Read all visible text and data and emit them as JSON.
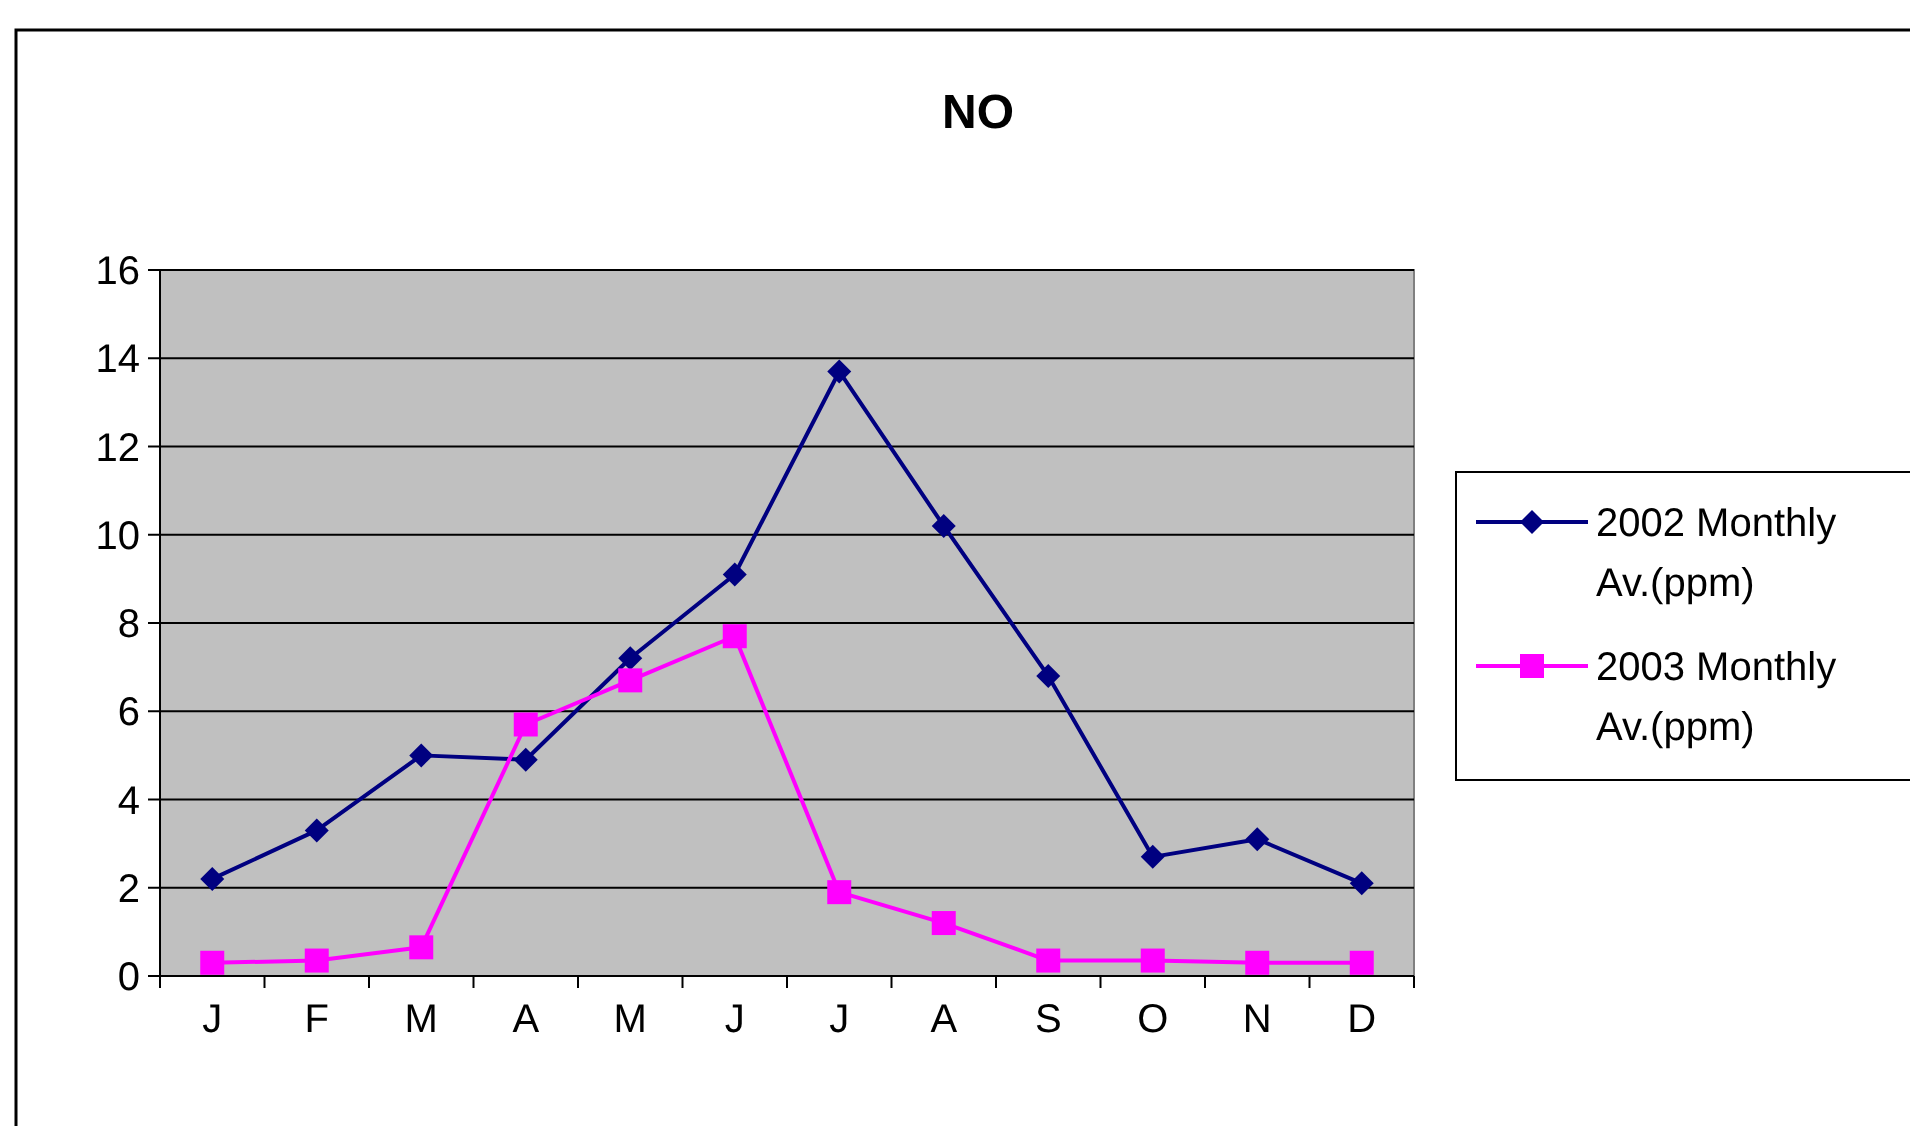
{
  "chart_data": {
    "type": "line",
    "title": "NO",
    "categories": [
      "J",
      "F",
      "M",
      "A",
      "M",
      "J",
      "J",
      "A",
      "S",
      "O",
      "N",
      "D"
    ],
    "series": [
      {
        "name": "2002 Monthly Av.(ppm)",
        "color": "#000080",
        "marker": "diamond",
        "values": [
          2.2,
          3.3,
          5.0,
          4.9,
          7.2,
          9.1,
          13.7,
          10.2,
          6.8,
          2.7,
          3.1,
          2.1
        ]
      },
      {
        "name": "2003 Monthly Av.(ppm)",
        "color": "#ff00ff",
        "marker": "square",
        "values": [
          0.3,
          0.35,
          0.65,
          5.7,
          6.7,
          7.7,
          1.9,
          1.2,
          0.35,
          0.35,
          0.3,
          0.3
        ]
      }
    ],
    "ylim": [
      0,
      16
    ],
    "yticks": [
      0,
      2,
      4,
      6,
      8,
      10,
      12,
      14,
      16
    ],
    "grid": "y",
    "legend": "right"
  }
}
